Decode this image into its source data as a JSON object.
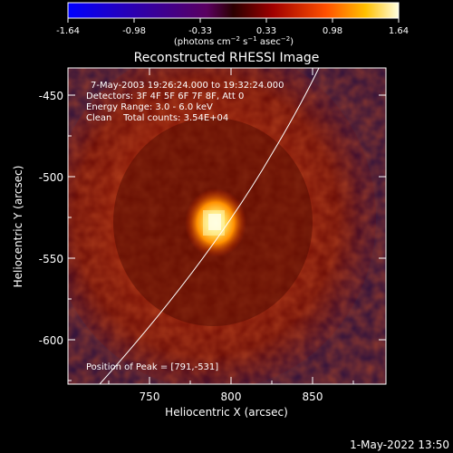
{
  "colorbar": {
    "ticks": [
      "-1.64",
      "-0.98",
      "-0.33",
      "0.33",
      "0.98",
      "1.64"
    ],
    "units": "(photons cm",
    "units_exp1": "−2",
    "units_mid": " s",
    "units_exp2": "−1",
    "units_mid2": " asec",
    "units_exp3": "−2",
    "units_end": ")"
  },
  "title": "Reconstructed RHESSI Image",
  "info": {
    "time_range": "7-May-2003 19:26:24.000 to 19:32:24.000",
    "detectors": "Detectors: 3F 4F 5F 6F 7F 8F, Att 0",
    "energy": "Energy Range: 3.0 - 6.0 keV",
    "clean": "Clean    Total counts: 3.54E+04",
    "peak": "Position of Peak = [791,-531]"
  },
  "axes": {
    "xlabel": "Heliocentric X (arcsec)",
    "ylabel": "Heliocentric Y (arcsec)",
    "xticks": [
      "750",
      "800",
      "850"
    ],
    "yticks": [
      "-450",
      "-500",
      "-550",
      "-600"
    ]
  },
  "footer": "1-May-2022 13:50",
  "colors": {
    "background": "#000000",
    "peak": "#fff6a0",
    "limb": "#ffffff"
  }
}
